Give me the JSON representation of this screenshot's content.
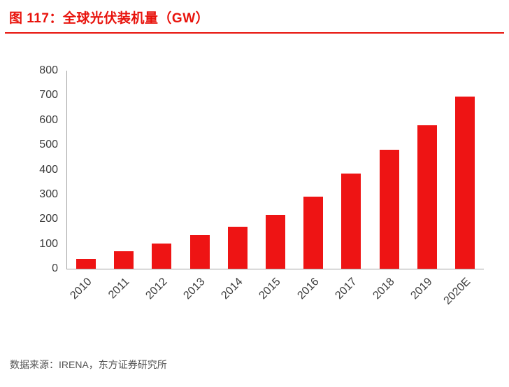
{
  "header": {
    "title": "图 117：全球光伏装机量（GW）"
  },
  "footer": {
    "source": "数据来源：IRENA，东方证券研究所"
  },
  "colors": {
    "accent": "#e8130c",
    "bar": "#ee1414",
    "axis_line": "#a3a3a3",
    "tick_text": "#3d3d3d",
    "source_text": "#545454"
  },
  "chart_data": {
    "type": "bar",
    "title": "图 117：全球光伏装机量（GW）",
    "categories": [
      "2010",
      "2011",
      "2012",
      "2013",
      "2014",
      "2015",
      "2016",
      "2017",
      "2018",
      "2019",
      "2020E"
    ],
    "values": [
      40,
      71,
      101,
      137,
      171,
      219,
      292,
      385,
      481,
      580,
      695
    ],
    "xlabel": "",
    "ylabel": "",
    "ylim": [
      0,
      800
    ],
    "ytick_step": 100,
    "grid": false,
    "legend": false,
    "bar_color": "#ee1414"
  }
}
